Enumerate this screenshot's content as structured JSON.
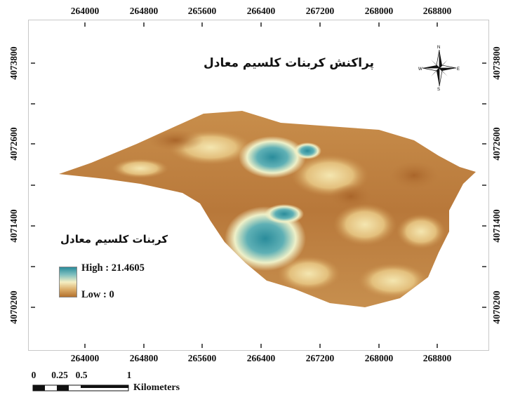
{
  "map_title": "پراکنش کربنات کلسیم معادل",
  "x_ticks": [
    "264000",
    "264800",
    "265600",
    "266400",
    "267200",
    "268000",
    "268800"
  ],
  "y_ticks": [
    "4073800",
    "4072600",
    "4071400",
    "4070200"
  ],
  "legend": {
    "title": "کربنات کلسیم معادل",
    "high_label": "High : 21.4605",
    "low_label": "Low : 0",
    "ramp_colors": [
      "#2a8c9b",
      "#7fbfbf",
      "#f5efc4",
      "#dcae6a",
      "#b3712e"
    ]
  },
  "north_arrow": {
    "icon": "compass-rose-icon",
    "labels": [
      "N",
      "E",
      "S",
      "W"
    ]
  },
  "scale_bar": {
    "labels": [
      "0",
      "0.25",
      "0.5",
      "1"
    ],
    "unit": "Kilometers"
  },
  "colors": {
    "high": "#2a8c9b",
    "mid": "#f5efc4",
    "low": "#b3712e"
  }
}
